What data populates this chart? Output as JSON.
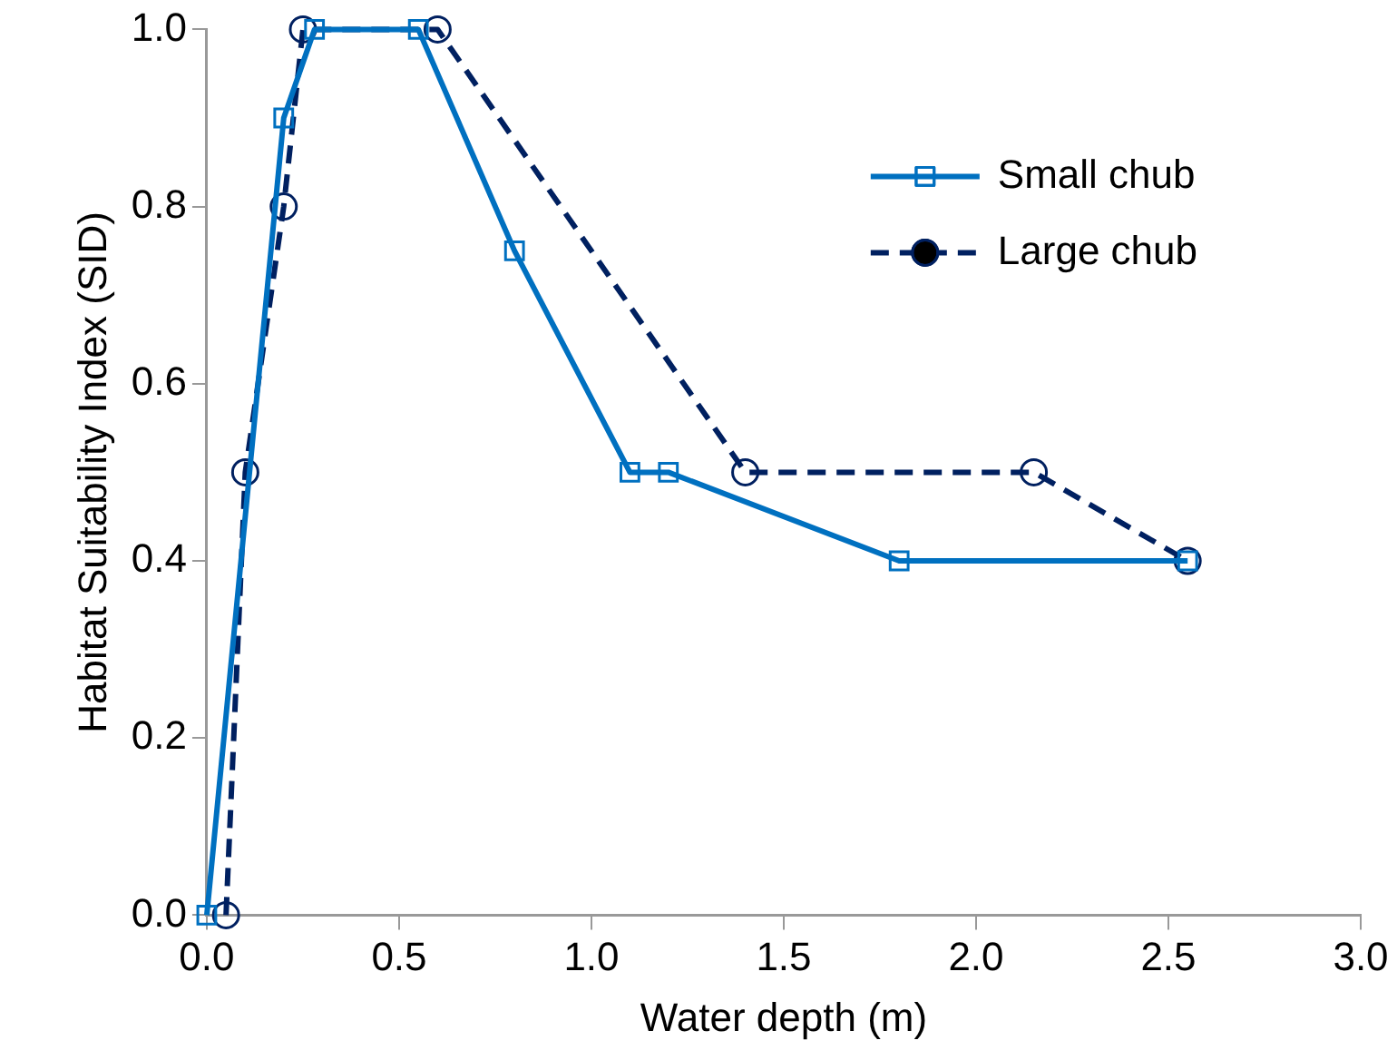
{
  "chart_data": {
    "type": "line",
    "xlabel": "Water depth (m)",
    "ylabel": "Habitat Suitability Index (SID)",
    "xlim": [
      0,
      3
    ],
    "xticks": [
      {
        "value": 0,
        "label": "0.0"
      },
      {
        "value": 0.5,
        "label": "0.5"
      },
      {
        "value": 1,
        "label": "1.0"
      },
      {
        "value": 1.5,
        "label": "1.5"
      },
      {
        "value": 2,
        "label": "2.0"
      },
      {
        "value": 2.5,
        "label": "2.5"
      },
      {
        "value": 3,
        "label": "3.0"
      }
    ],
    "ylim": [
      0,
      1
    ],
    "yticks": [
      {
        "value": 0,
        "label": "0.0"
      },
      {
        "value": 0.2,
        "label": "0.2"
      },
      {
        "value": 0.4,
        "label": "0.4"
      },
      {
        "value": 0.6,
        "label": "0.6"
      },
      {
        "value": 0.8,
        "label": "0.8"
      },
      {
        "value": 1,
        "label": "1.0"
      }
    ],
    "grid": false,
    "legend": "top right",
    "series": [
      {
        "name": "Small chub",
        "color": "#0070c0",
        "marker": "square",
        "line_style": "solid",
        "x": [
          0,
          0.2,
          0.28,
          0.55,
          0.8,
          1.1,
          1.2,
          1.8,
          2.55
        ],
        "values": [
          0,
          0.9,
          1,
          1,
          0.75,
          0.5,
          0.5,
          0.4,
          0.4
        ]
      },
      {
        "name": "Large chub",
        "color": "#002060",
        "marker": "circle",
        "line_style": "dashed",
        "x": [
          0.05,
          0.1,
          0.2,
          0.25,
          0.6,
          1.4,
          2.15,
          2.55
        ],
        "values": [
          0,
          0.5,
          0.8,
          1,
          1,
          0.5,
          0.5,
          0.4
        ]
      }
    ]
  }
}
